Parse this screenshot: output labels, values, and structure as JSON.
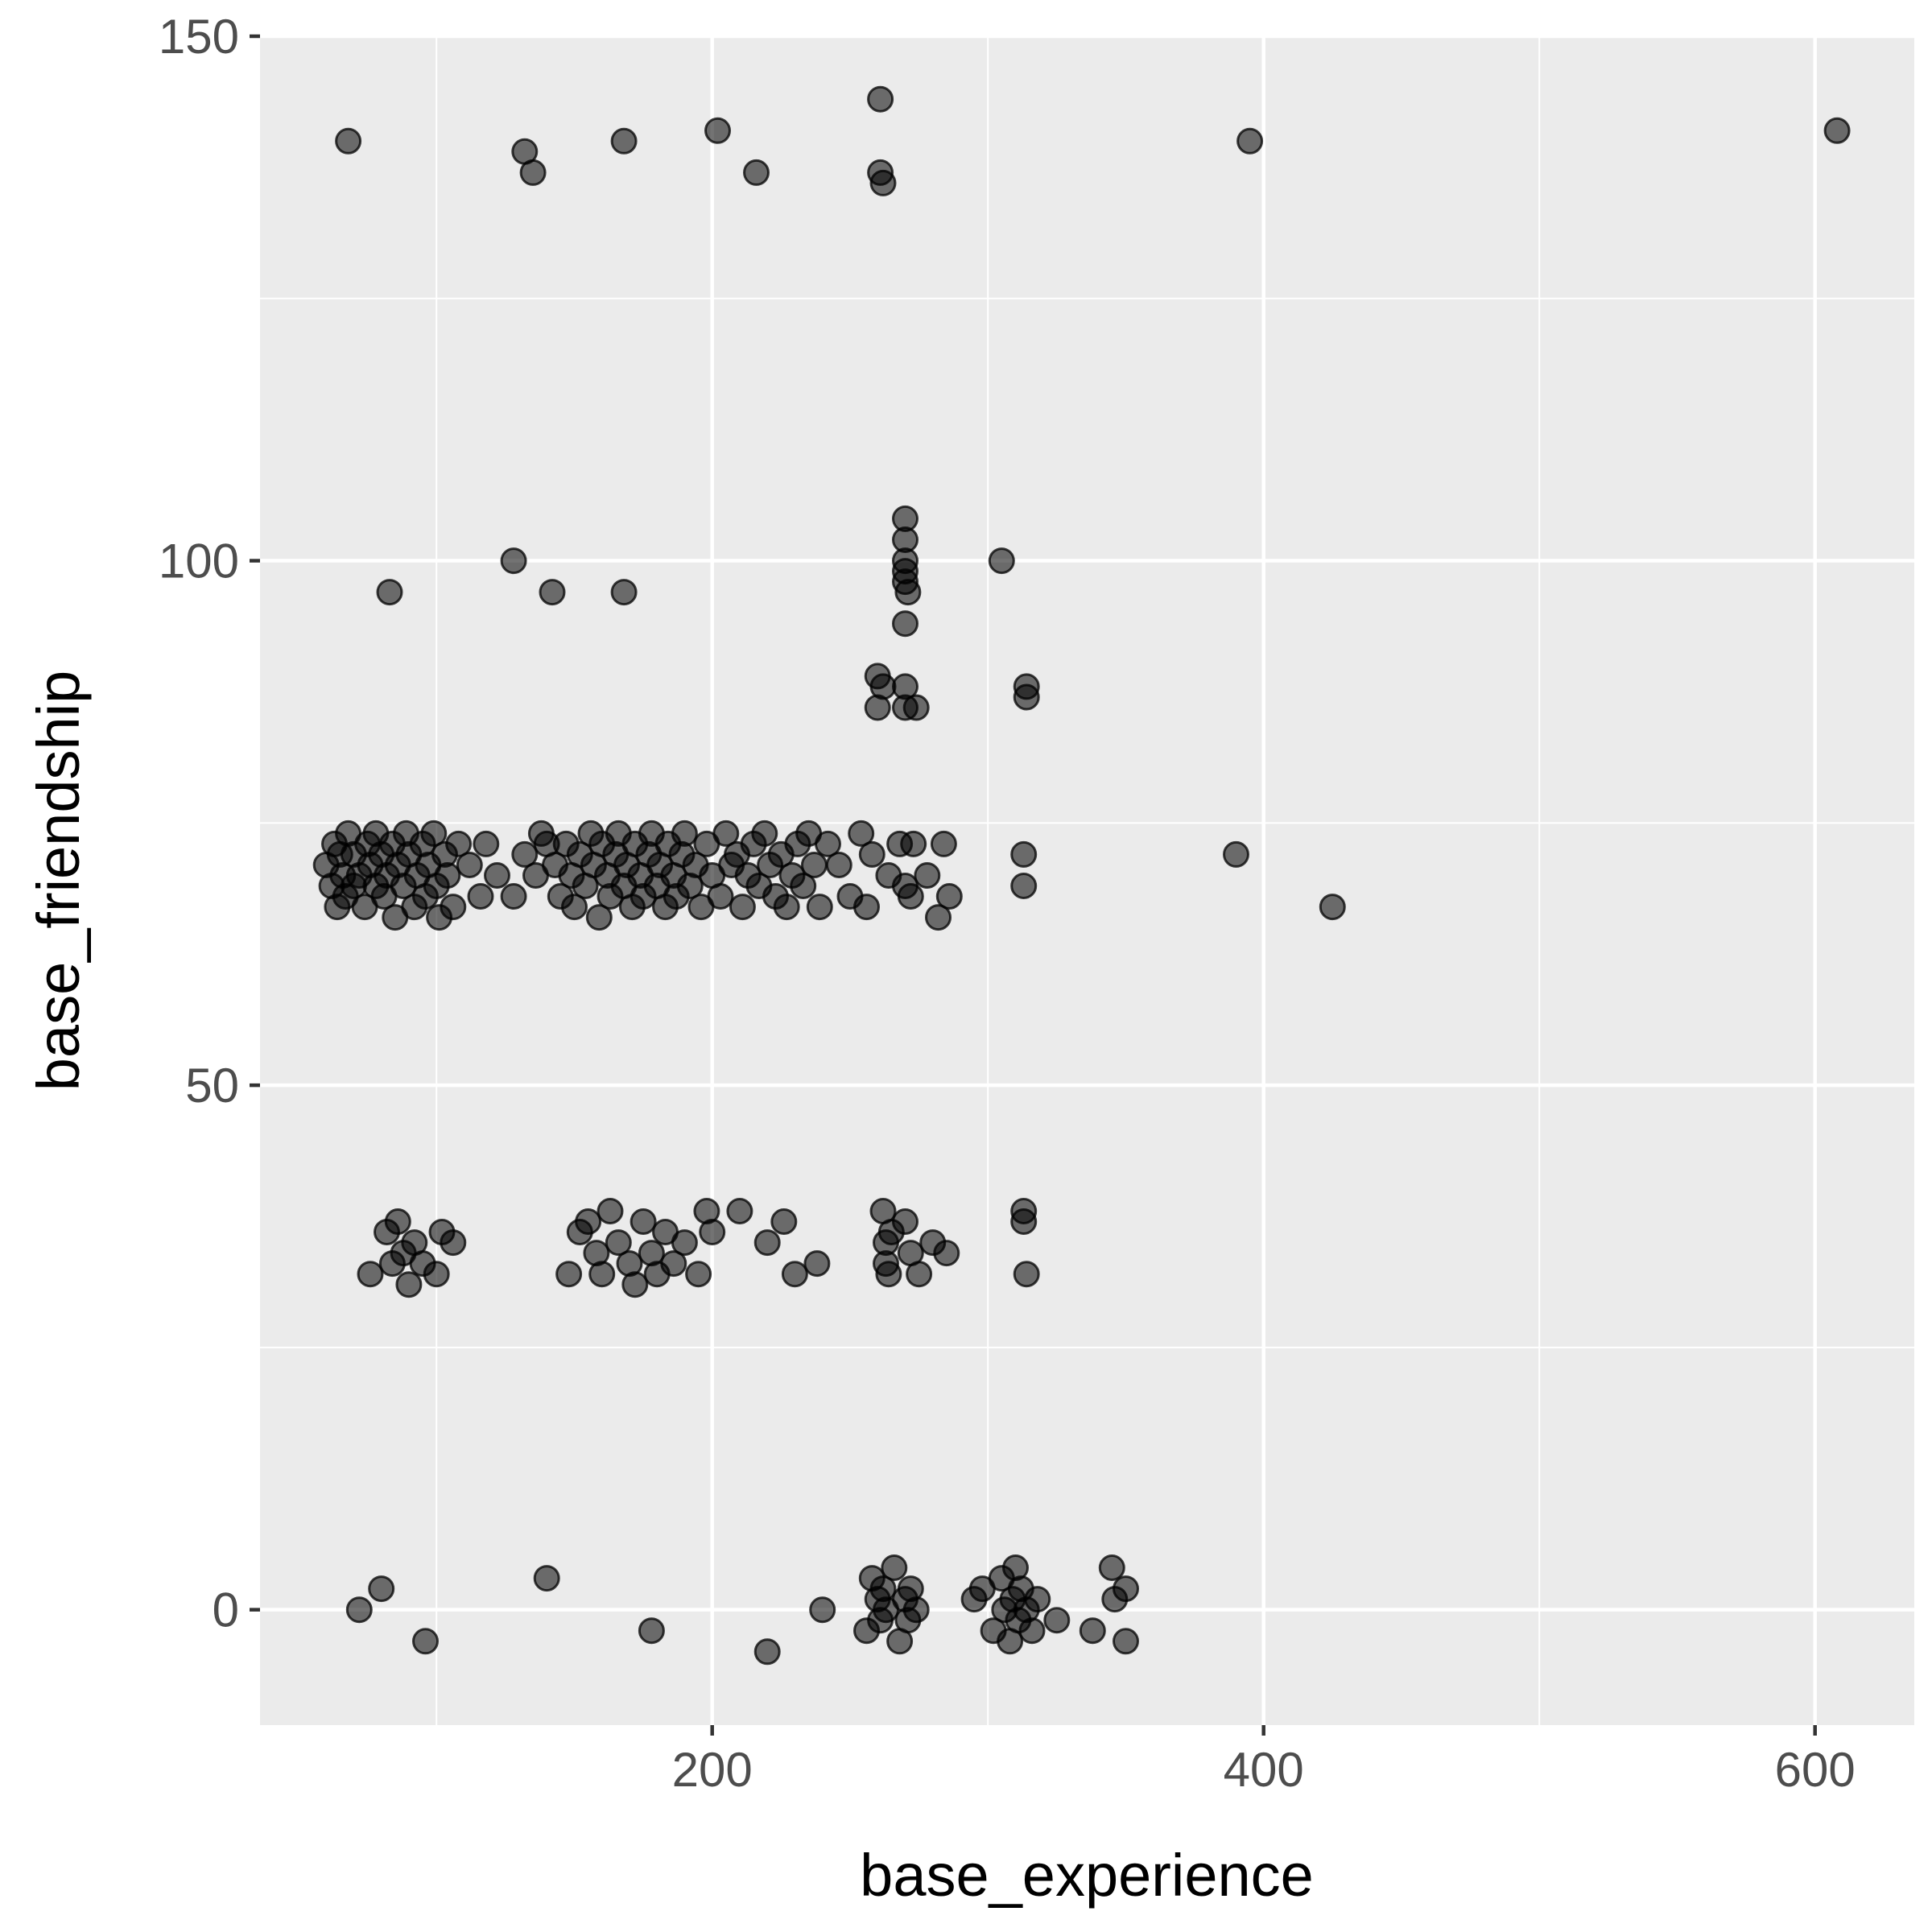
{
  "chart_data": {
    "type": "scatter",
    "title": "",
    "xlabel": "base_experience",
    "ylabel": "base_friendship",
    "xlim": [
      36,
      636
    ],
    "ylim": [
      -11,
      150
    ],
    "x_ticks": [
      200,
      400,
      600
    ],
    "y_ticks": [
      0,
      50,
      100,
      150
    ],
    "grid": true,
    "legend": "none",
    "point_color": "#000000",
    "point_alpha": 0.55,
    "panel_background": "#ebebeb",
    "grid_color": "#ffffff",
    "points": [
      [
        68,
        140
      ],
      [
        132,
        139
      ],
      [
        135,
        137
      ],
      [
        168,
        140
      ],
      [
        202,
        141
      ],
      [
        216,
        137
      ],
      [
        261,
        144
      ],
      [
        261,
        137
      ],
      [
        262,
        136
      ],
      [
        395,
        140
      ],
      [
        608,
        141
      ],
      [
        83,
        97
      ],
      [
        128,
        100
      ],
      [
        142,
        97
      ],
      [
        168,
        97
      ],
      [
        270,
        104
      ],
      [
        270,
        102
      ],
      [
        270,
        100
      ],
      [
        270,
        99
      ],
      [
        270,
        98
      ],
      [
        271,
        97
      ],
      [
        270,
        94
      ],
      [
        305,
        100
      ],
      [
        260,
        89
      ],
      [
        262,
        88
      ],
      [
        270,
        88
      ],
      [
        260,
        86
      ],
      [
        270,
        86
      ],
      [
        274,
        86
      ],
      [
        314,
        88
      ],
      [
        314,
        87
      ],
      [
        60,
        71
      ],
      [
        62,
        69
      ],
      [
        63,
        73
      ],
      [
        64,
        67
      ],
      [
        65,
        72
      ],
      [
        66,
        70
      ],
      [
        67,
        68
      ],
      [
        68,
        74
      ],
      [
        70,
        72
      ],
      [
        70,
        69
      ],
      [
        72,
        70
      ],
      [
        74,
        67
      ],
      [
        75,
        73
      ],
      [
        76,
        71
      ],
      [
        78,
        69
      ],
      [
        78,
        74
      ],
      [
        80,
        72
      ],
      [
        81,
        68
      ],
      [
        82,
        70
      ],
      [
        84,
        73
      ],
      [
        85,
        66
      ],
      [
        86,
        71
      ],
      [
        88,
        69
      ],
      [
        89,
        74
      ],
      [
        90,
        72
      ],
      [
        92,
        67
      ],
      [
        93,
        70
      ],
      [
        95,
        73
      ],
      [
        96,
        68
      ],
      [
        97,
        71
      ],
      [
        99,
        74
      ],
      [
        100,
        69
      ],
      [
        101,
        66
      ],
      [
        103,
        72
      ],
      [
        104,
        70
      ],
      [
        106,
        67
      ],
      [
        108,
        73
      ],
      [
        112,
        71
      ],
      [
        116,
        68
      ],
      [
        118,
        73
      ],
      [
        122,
        70
      ],
      [
        128,
        68
      ],
      [
        132,
        72
      ],
      [
        136,
        70
      ],
      [
        138,
        74
      ],
      [
        140,
        73
      ],
      [
        143,
        71
      ],
      [
        145,
        68
      ],
      [
        147,
        73
      ],
      [
        149,
        70
      ],
      [
        150,
        67
      ],
      [
        152,
        72
      ],
      [
        154,
        69
      ],
      [
        156,
        74
      ],
      [
        157,
        71
      ],
      [
        159,
        66
      ],
      [
        160,
        73
      ],
      [
        162,
        70
      ],
      [
        163,
        68
      ],
      [
        165,
        72
      ],
      [
        166,
        74
      ],
      [
        168,
        69
      ],
      [
        169,
        71
      ],
      [
        171,
        67
      ],
      [
        172,
        73
      ],
      [
        174,
        70
      ],
      [
        175,
        68
      ],
      [
        177,
        72
      ],
      [
        178,
        74
      ],
      [
        180,
        69
      ],
      [
        181,
        71
      ],
      [
        183,
        67
      ],
      [
        184,
        73
      ],
      [
        186,
        70
      ],
      [
        187,
        68
      ],
      [
        189,
        72
      ],
      [
        190,
        74
      ],
      [
        192,
        69
      ],
      [
        194,
        71
      ],
      [
        196,
        67
      ],
      [
        198,
        73
      ],
      [
        200,
        70
      ],
      [
        203,
        68
      ],
      [
        205,
        74
      ],
      [
        207,
        71
      ],
      [
        209,
        72
      ],
      [
        211,
        67
      ],
      [
        213,
        70
      ],
      [
        215,
        73
      ],
      [
        217,
        69
      ],
      [
        219,
        74
      ],
      [
        221,
        71
      ],
      [
        223,
        68
      ],
      [
        225,
        72
      ],
      [
        227,
        67
      ],
      [
        229,
        70
      ],
      [
        231,
        73
      ],
      [
        233,
        69
      ],
      [
        235,
        74
      ],
      [
        237,
        71
      ],
      [
        239,
        67
      ],
      [
        242,
        73
      ],
      [
        246,
        71
      ],
      [
        250,
        68
      ],
      [
        254,
        74
      ],
      [
        258,
        72
      ],
      [
        264,
        70
      ],
      [
        268,
        73
      ],
      [
        270,
        69
      ],
      [
        273,
        73
      ],
      [
        278,
        70
      ],
      [
        282,
        66
      ],
      [
        284,
        73
      ],
      [
        286,
        68
      ],
      [
        272,
        68
      ],
      [
        256,
        67
      ],
      [
        390,
        72
      ],
      [
        425,
        67
      ],
      [
        313,
        72
      ],
      [
        313,
        69
      ],
      [
        76,
        32
      ],
      [
        82,
        36
      ],
      [
        84,
        33
      ],
      [
        86,
        37
      ],
      [
        88,
        34
      ],
      [
        90,
        31
      ],
      [
        92,
        35
      ],
      [
        95,
        33
      ],
      [
        100,
        32
      ],
      [
        102,
        36
      ],
      [
        106,
        35
      ],
      [
        148,
        32
      ],
      [
        152,
        36
      ],
      [
        155,
        37
      ],
      [
        158,
        34
      ],
      [
        160,
        32
      ],
      [
        163,
        38
      ],
      [
        166,
        35
      ],
      [
        170,
        33
      ],
      [
        172,
        31
      ],
      [
        175,
        37
      ],
      [
        178,
        34
      ],
      [
        180,
        32
      ],
      [
        183,
        36
      ],
      [
        186,
        33
      ],
      [
        190,
        35
      ],
      [
        195,
        32
      ],
      [
        198,
        38
      ],
      [
        200,
        36
      ],
      [
        210,
        38
      ],
      [
        220,
        35
      ],
      [
        226,
        37
      ],
      [
        230,
        32
      ],
      [
        238,
        33
      ],
      [
        262,
        38
      ],
      [
        263,
        35
      ],
      [
        263,
        33
      ],
      [
        264,
        32
      ],
      [
        265,
        36
      ],
      [
        270,
        37
      ],
      [
        272,
        34
      ],
      [
        275,
        32
      ],
      [
        280,
        35
      ],
      [
        285,
        34
      ],
      [
        313,
        38
      ],
      [
        313,
        37
      ],
      [
        314,
        32
      ],
      [
        72,
        0
      ],
      [
        80,
        2
      ],
      [
        96,
        -3
      ],
      [
        140,
        3
      ],
      [
        178,
        -2
      ],
      [
        220,
        -4
      ],
      [
        240,
        0
      ],
      [
        256,
        -2
      ],
      [
        258,
        3
      ],
      [
        260,
        1
      ],
      [
        261,
        -1
      ],
      [
        262,
        2
      ],
      [
        263,
        0
      ],
      [
        266,
        4
      ],
      [
        268,
        -3
      ],
      [
        270,
        1
      ],
      [
        271,
        -1
      ],
      [
        272,
        2
      ],
      [
        274,
        0
      ],
      [
        295,
        1
      ],
      [
        298,
        2
      ],
      [
        302,
        -2
      ],
      [
        305,
        3
      ],
      [
        306,
        0
      ],
      [
        308,
        -3
      ],
      [
        309,
        1
      ],
      [
        310,
        4
      ],
      [
        311,
        -1
      ],
      [
        312,
        2
      ],
      [
        314,
        0
      ],
      [
        316,
        -2
      ],
      [
        318,
        1
      ],
      [
        325,
        -1
      ],
      [
        338,
        -2
      ],
      [
        345,
        4
      ],
      [
        346,
        1
      ],
      [
        350,
        2
      ],
      [
        350,
        -3
      ]
    ]
  }
}
